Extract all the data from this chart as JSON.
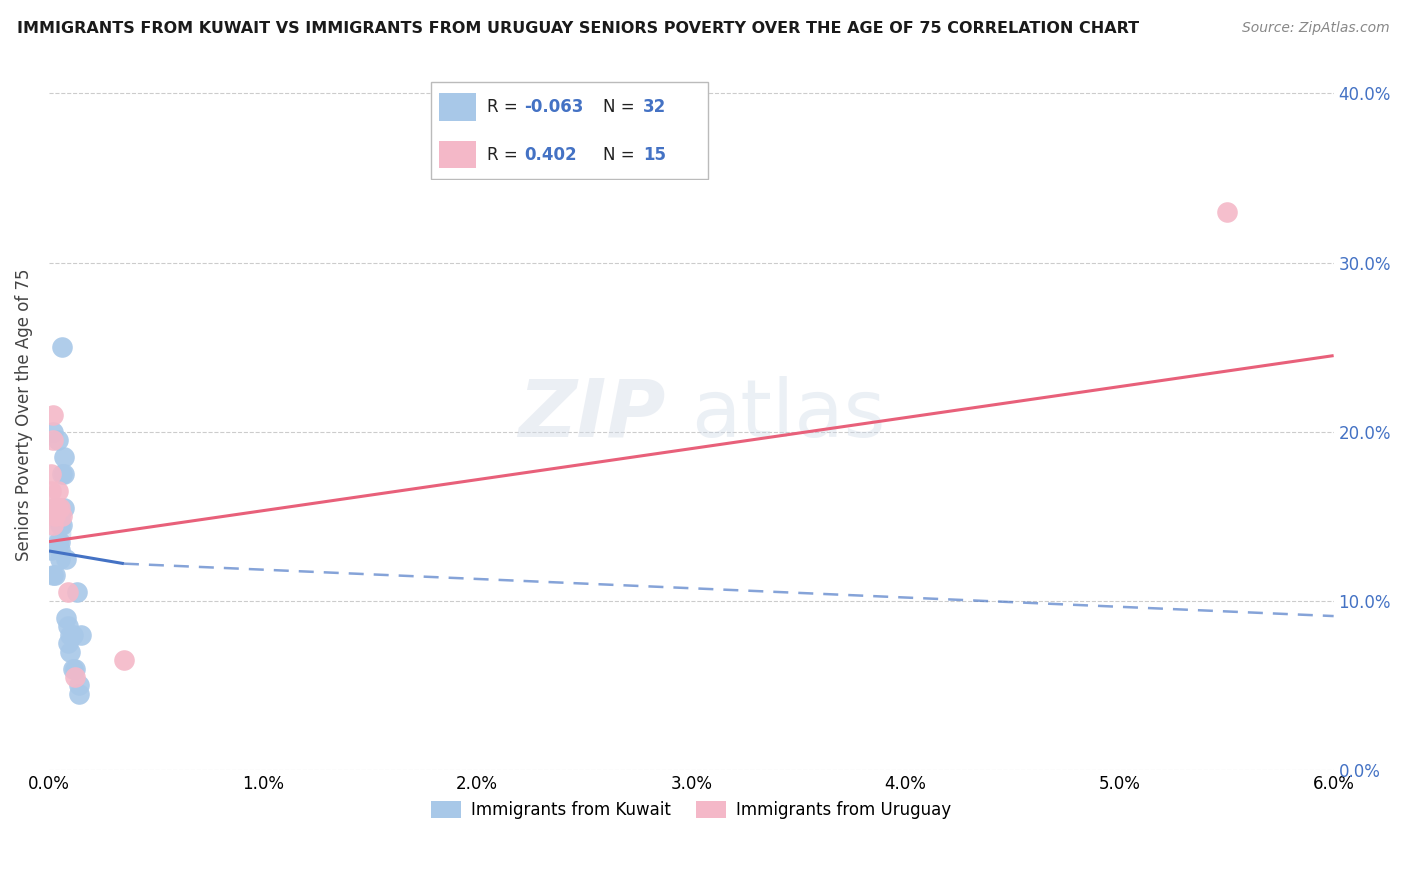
{
  "title": "IMMIGRANTS FROM KUWAIT VS IMMIGRANTS FROM URUGUAY SENIORS POVERTY OVER THE AGE OF 75 CORRELATION CHART",
  "source": "Source: ZipAtlas.com",
  "ylabel": "Seniors Poverty Over the Age of 75",
  "legend_label1": "Immigrants from Kuwait",
  "legend_label2": "Immigrants from Uruguay",
  "xlim": [
    0.0,
    0.06
  ],
  "ylim": [
    0.0,
    0.42
  ],
  "xticks": [
    0.0,
    0.01,
    0.02,
    0.03,
    0.04,
    0.05,
    0.06
  ],
  "yticks": [
    0.0,
    0.1,
    0.2,
    0.3,
    0.4
  ],
  "color_kuwait": "#a8c8e8",
  "color_uruguay": "#f4b8c8",
  "color_kuwait_line": "#4472c4",
  "color_uruguay_line": "#e8607a",
  "kuwait_points": [
    [
      0.0001,
      0.13
    ],
    [
      0.0002,
      0.115
    ],
    [
      0.0002,
      0.2
    ],
    [
      0.0003,
      0.115
    ],
    [
      0.0003,
      0.155
    ],
    [
      0.0004,
      0.195
    ],
    [
      0.0004,
      0.155
    ],
    [
      0.0004,
      0.135
    ],
    [
      0.0005,
      0.135
    ],
    [
      0.0005,
      0.13
    ],
    [
      0.0005,
      0.15
    ],
    [
      0.0005,
      0.125
    ],
    [
      0.0005,
      0.145
    ],
    [
      0.0006,
      0.145
    ],
    [
      0.0006,
      0.175
    ],
    [
      0.0006,
      0.25
    ],
    [
      0.0007,
      0.155
    ],
    [
      0.0007,
      0.185
    ],
    [
      0.0007,
      0.175
    ],
    [
      0.0008,
      0.125
    ],
    [
      0.0008,
      0.09
    ],
    [
      0.0009,
      0.085
    ],
    [
      0.0009,
      0.075
    ],
    [
      0.001,
      0.08
    ],
    [
      0.001,
      0.07
    ],
    [
      0.0011,
      0.08
    ],
    [
      0.0011,
      0.06
    ],
    [
      0.0012,
      0.06
    ],
    [
      0.0013,
      0.105
    ],
    [
      0.0014,
      0.05
    ],
    [
      0.0014,
      0.045
    ],
    [
      0.0015,
      0.08
    ]
  ],
  "uruguay_points": [
    [
      0.0001,
      0.165
    ],
    [
      0.0001,
      0.175
    ],
    [
      0.0002,
      0.21
    ],
    [
      0.0002,
      0.195
    ],
    [
      0.0002,
      0.145
    ],
    [
      0.0003,
      0.15
    ],
    [
      0.0003,
      0.155
    ],
    [
      0.0003,
      0.155
    ],
    [
      0.0004,
      0.155
    ],
    [
      0.0004,
      0.165
    ],
    [
      0.0005,
      0.155
    ],
    [
      0.0006,
      0.15
    ],
    [
      0.0009,
      0.105
    ],
    [
      0.0012,
      0.055
    ],
    [
      0.055,
      0.33
    ],
    [
      0.0035,
      0.065
    ]
  ],
  "kuwait_line_solid": [
    0.0,
    0.1295,
    0.0035,
    0.122
  ],
  "kuwait_line_dashed": [
    0.0035,
    0.122,
    0.06,
    0.091
  ],
  "uruguay_line_solid": [
    0.0,
    0.135,
    0.06,
    0.245
  ],
  "watermark_zip": "ZIP",
  "watermark_atlas": "atlas",
  "bg_color": "#ffffff",
  "grid_color": "#cccccc"
}
